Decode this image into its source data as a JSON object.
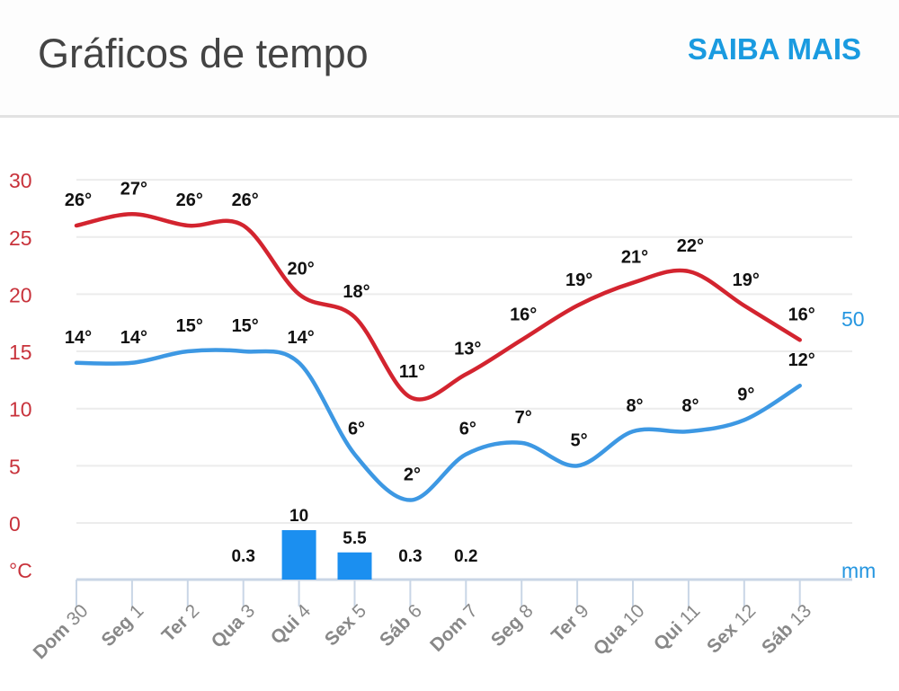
{
  "header": {
    "title": "Gráficos de tempo",
    "more_label": "SAIBA MAIS"
  },
  "colors": {
    "max_line": "#d3242f",
    "min_line": "#3d98e3",
    "bars": "#1b8ff0",
    "temp_axis": "#c8323b",
    "precip_axis": "#2596e0",
    "more_link": "#1a9be0"
  },
  "chart_data": {
    "type": "line",
    "categories": [
      "Dom 30",
      "Seg 1",
      "Ter 2",
      "Qua 3",
      "Qui 4",
      "Sex 5",
      "Sáb 6",
      "Dom 7",
      "Seg 8",
      "Ter 9",
      "Qua 10",
      "Qui 11",
      "Sex 12",
      "Sáb 13"
    ],
    "series": [
      {
        "type": "line",
        "axis": "temp",
        "values": [
          26,
          27,
          26,
          26,
          20,
          18,
          11,
          13,
          16,
          19,
          21,
          22,
          19,
          16
        ]
      },
      {
        "type": "line",
        "axis": "temp",
        "values": [
          14,
          14,
          15,
          15,
          14,
          6,
          2,
          6,
          7,
          5,
          8,
          8,
          9,
          12
        ]
      },
      {
        "type": "bar",
        "axis": "precip",
        "values": [
          null,
          null,
          null,
          0.3,
          10,
          5.5,
          0.3,
          0.2,
          null,
          null,
          null,
          null,
          null,
          null
        ],
        "labels": [
          "",
          "",
          "",
          "0.3",
          "10",
          "5.5",
          "0.3",
          "0.2",
          "",
          "",
          "",
          "",
          "",
          ""
        ]
      }
    ],
    "y_left": {
      "ticks": [
        "30",
        "25",
        "20",
        "15",
        "10",
        "5",
        "0"
      ],
      "tick_values": [
        30,
        25,
        20,
        15,
        10,
        5,
        0
      ],
      "unit": "°C",
      "range": [
        -5,
        30
      ]
    },
    "y_right": {
      "ticks": [
        "50"
      ],
      "tick_values": [
        50
      ],
      "unit": "mm",
      "range": [
        0,
        50
      ]
    },
    "value_suffix": "°",
    "grid": true
  }
}
